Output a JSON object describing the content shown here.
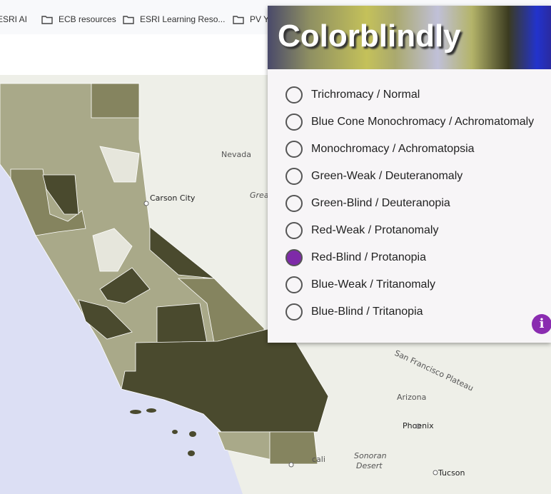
{
  "bookmarks": [
    "ESRI AI",
    "ECB resources",
    "ESRI Learning Reso...",
    "PV Y"
  ],
  "map_labels": {
    "nevada": "Nevada",
    "carson_city": "Carson City",
    "great": "Grea",
    "plateau": "San Francisco Plateau",
    "arizona": "Arizona",
    "phoenix": "Phoenix",
    "sonoran": "Sonoran",
    "desert": "Desert",
    "tucson": "Tucson",
    "mexicali": "cali"
  },
  "panel": {
    "title": "Colorblindly",
    "options": [
      "Trichromacy / Normal",
      "Blue Cone Monochromacy / Achromatomaly",
      "Monochromacy / Achromatopsia",
      "Green-Weak / Deuteranomaly",
      "Green-Blind / Deuteranopia",
      "Red-Weak / Protanomaly",
      "Red-Blind / Protanopia",
      "Blue-Weak / Tritanomaly",
      "Blue-Blind / Tritanopia"
    ],
    "selected": 6,
    "info": "i"
  }
}
